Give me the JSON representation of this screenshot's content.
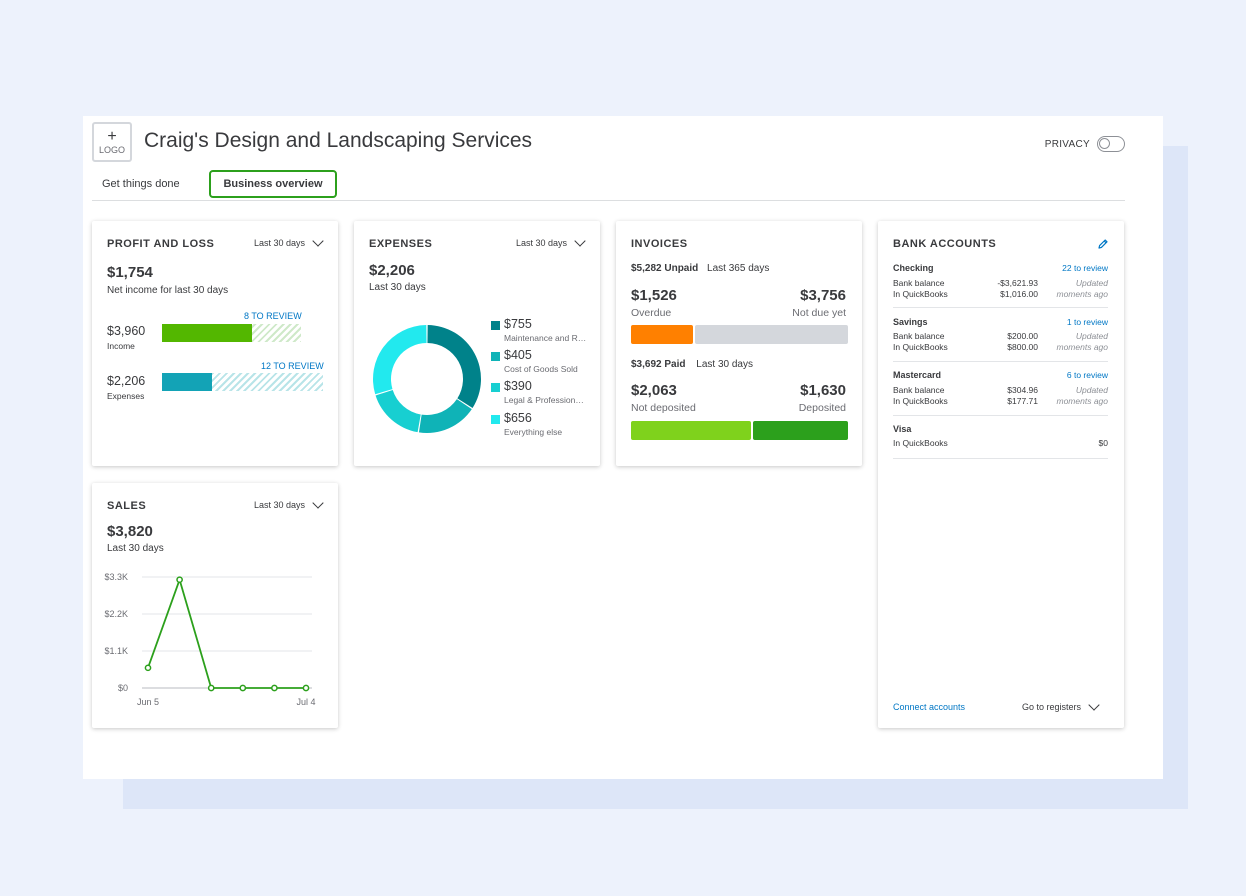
{
  "header": {
    "logo_plus": "+",
    "logo_label": "LOGO",
    "company_name": "Craig's Design and Landscaping Services",
    "privacy_label": "PRIVACY"
  },
  "tabs": [
    {
      "label": "Get things done",
      "active": false
    },
    {
      "label": "Business overview",
      "active": true
    }
  ],
  "colors": {
    "accent_green": "#2ca01c",
    "link_blue": "#0077c5",
    "teal_dark": "#00828a",
    "teal": "#0fb3b7",
    "teal_light": "#17cfd1",
    "cyan": "#22e9ee",
    "overdue_orange": "#ff8000",
    "gray_bar": "#d4d7dc",
    "lime": "#7fd21c",
    "green": "#2ca01c"
  },
  "profit_loss": {
    "title": "PROFIT AND LOSS",
    "period": "Last 30 days",
    "net_income": "$1,754",
    "net_income_label": "Net income for last 30 days",
    "income": {
      "value": "$3,960",
      "label": "Income",
      "review": "8 TO REVIEW",
      "fill_fraction": 0.65
    },
    "expenses": {
      "value": "$2,206",
      "label": "Expenses",
      "review": "12 TO REVIEW",
      "fill_fraction": 0.31
    }
  },
  "expenses": {
    "title": "EXPENSES",
    "period": "Last 30 days",
    "total": "$2,206",
    "total_label": "Last 30 days",
    "items": [
      {
        "amount": "$755",
        "label": "Maintenance and Repair",
        "color": "#00828a"
      },
      {
        "amount": "$405",
        "label": "Cost of Goods Sold",
        "color": "#0fb3b7"
      },
      {
        "amount": "$390",
        "label": "Legal & Professional Fees",
        "color": "#17cfd1"
      },
      {
        "amount": "$656",
        "label": "Everything else",
        "color": "#22e9ee"
      }
    ]
  },
  "invoices": {
    "title": "INVOICES",
    "unpaid_amount": "$5,282 Unpaid",
    "unpaid_period": "Last 365 days",
    "overdue_value": "$1,526",
    "overdue_label": "Overdue",
    "not_due_value": "$3,756",
    "not_due_label": "Not due yet",
    "overdue_fraction": 0.289,
    "paid_amount": "$3,692 Paid",
    "paid_period": "Last 30 days",
    "not_deposited_value": "$2,063",
    "not_deposited_label": "Not deposited",
    "deposited_value": "$1,630",
    "deposited_label": "Deposited",
    "not_deposited_fraction": 0.559
  },
  "bank_accounts": {
    "title": "BANK ACCOUNTS",
    "edit_icon": "pencil-icon",
    "accounts": [
      {
        "name": "Checking",
        "review": "22 to review",
        "bank_label": "Bank balance",
        "bank_balance": "-$3,621.93",
        "qb_label": "In QuickBooks",
        "qb_balance": "$1,016.00",
        "updated": "Updated moments ago"
      },
      {
        "name": "Savings",
        "review": "1 to review",
        "bank_label": "Bank balance",
        "bank_balance": "$200.00",
        "qb_label": "In QuickBooks",
        "qb_balance": "$800.00",
        "updated": "Updated moments ago"
      },
      {
        "name": "Mastercard",
        "review": "6 to review",
        "bank_label": "Bank balance",
        "bank_balance": "$304.96",
        "qb_label": "In QuickBooks",
        "qb_balance": "$177.71",
        "updated": "Updated moments ago"
      },
      {
        "name": "Visa",
        "qb_label": "In QuickBooks",
        "qb_balance": "$0"
      }
    ],
    "connect_label": "Connect accounts",
    "registers_label": "Go to registers"
  },
  "sales": {
    "title": "SALES",
    "period": "Last 30 days",
    "total": "$3,820",
    "total_label": "Last 30 days"
  },
  "chart_data": [
    {
      "type": "pie",
      "title": "",
      "categories": [
        "Maintenance and Repair",
        "Cost of Goods Sold",
        "Legal & Professional Fees",
        "Everything else"
      ],
      "values": [
        755,
        405,
        390,
        656
      ],
      "style": "donut"
    },
    {
      "type": "line",
      "title": "",
      "x_tick_labels": [
        "Jun 5",
        "Jul 4"
      ],
      "y_tick_labels": [
        "$0",
        "$1.1K",
        "$2.2K",
        "$3.3K"
      ],
      "ylim": [
        0,
        3300
      ],
      "grid": true,
      "values": [
        600,
        3220,
        0,
        0,
        0,
        0
      ],
      "color": "#2ca01c"
    }
  ]
}
